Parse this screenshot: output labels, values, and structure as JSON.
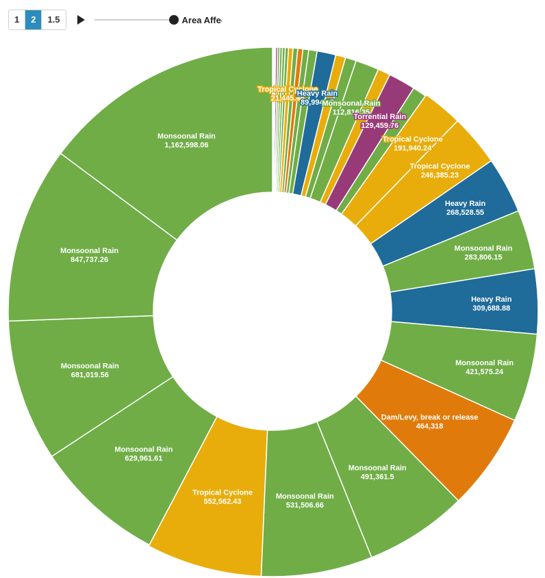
{
  "controls": {
    "buttons": [
      {
        "label": "1",
        "active": false
      },
      {
        "label": "2",
        "active": true
      },
      {
        "label": "1.5",
        "active": false
      }
    ],
    "play_icon": "play-icon",
    "slider_label": "Area Affected",
    "slider_progress": 1.0
  },
  "colors": {
    "Monsoonal Rain": "#70ad47",
    "Heavy Rain": "#1f6b9a",
    "Tropical Cyclone": "#e8ad0b",
    "Dam/Levy, break or release": "#e07b0b",
    "Torrential Rain": "#983a78"
  },
  "chart_data": {
    "type": "pie",
    "donut": true,
    "title": "",
    "order": "clockwise from 12 o'clock, ascending by value",
    "slices": [
      {
        "cause": "Heavy Rain",
        "value": 2500,
        "label": ""
      },
      {
        "cause": "Tropical Cyclone",
        "value": 3200,
        "label": ""
      },
      {
        "cause": "Dam/Levy, break or release",
        "value": 4200,
        "label": ""
      },
      {
        "cause": "Monsoonal Rain",
        "value": 5200,
        "label": ""
      },
      {
        "cause": "Torrential Rain",
        "value": 9500,
        "label": ""
      },
      {
        "cause": "Monsoonal Rain",
        "value": 10500,
        "label": ""
      },
      {
        "cause": "Monsoonal Rain",
        "value": 12000,
        "label": ""
      },
      {
        "cause": "Monsoonal Rain",
        "value": 13500,
        "label": ""
      },
      {
        "cause": "Monsoonal Rain",
        "value": 15500,
        "label": ""
      },
      {
        "cause": "Tropical Cyclone",
        "value": 21445.46,
        "label": "Tropical Cyclone"
      },
      {
        "cause": "Monsoonal Rain",
        "value": 22500,
        "label": ""
      },
      {
        "cause": "Dam/Levy, break or release",
        "value": 24500,
        "label": ""
      },
      {
        "cause": "Monsoonal Rain",
        "value": 28000,
        "label": ""
      },
      {
        "cause": "Monsoonal Rain",
        "value": 40000,
        "label": ""
      },
      {
        "cause": "Heavy Rain",
        "value": 89994.67,
        "label": "Heavy Rain"
      },
      {
        "cause": "Tropical Cyclone",
        "value": 48000,
        "label": ""
      },
      {
        "cause": "Monsoonal Rain",
        "value": 52000,
        "label": ""
      },
      {
        "cause": "Monsoonal Rain",
        "value": 112816.35,
        "label": "Monsoonal Rain"
      },
      {
        "cause": "Tropical Cyclone",
        "value": 60000,
        "label": ""
      },
      {
        "cause": "Torrential Rain",
        "value": 129459.76,
        "label": "Torrential Rain"
      },
      {
        "cause": "Monsoonal Rain",
        "value": 67000,
        "label": ""
      },
      {
        "cause": "Tropical Cyclone",
        "value": 191940.24,
        "label": "Tropical Cyclone"
      },
      {
        "cause": "Tropical Cyclone",
        "value": 246385.23,
        "label": "Tropical Cyclone"
      },
      {
        "cause": "Heavy Rain",
        "value": 268528.55,
        "label": "Heavy Rain"
      },
      {
        "cause": "Monsoonal Rain",
        "value": 283806.15,
        "label": "Monsoonal Rain"
      },
      {
        "cause": "Heavy Rain",
        "value": 309688.88,
        "label": "Heavy Rain"
      },
      {
        "cause": "Monsoonal Rain",
        "value": 421575.24,
        "label": "Monsoonal Rain"
      },
      {
        "cause": "Dam/Levy, break or release",
        "value": 464318,
        "label": "Dam/Levy, break or release"
      },
      {
        "cause": "Monsoonal Rain",
        "value": 491361.5,
        "label": "Monsoonal Rain"
      },
      {
        "cause": "Monsoonal Rain",
        "value": 531506.66,
        "label": "Monsoonal Rain"
      },
      {
        "cause": "Tropical Cyclone",
        "value": 552562.43,
        "label": "Tropical Cyclone"
      },
      {
        "cause": "Monsoonal Rain",
        "value": 629961.61,
        "label": "Monsoonal Rain"
      },
      {
        "cause": "Monsoonal Rain",
        "value": 681019.56,
        "label": "Monsoonal Rain"
      },
      {
        "cause": "Monsoonal Rain",
        "value": 847737.26,
        "label": "Monsoonal Rain"
      },
      {
        "cause": "Monsoonal Rain",
        "value": 1162598.06,
        "label": "Monsoonal Rain"
      }
    ]
  }
}
